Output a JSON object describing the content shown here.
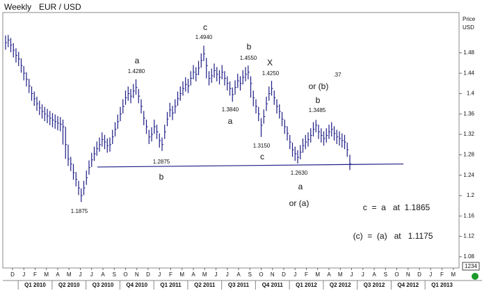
{
  "chart_data": {
    "type": "ohlc",
    "title": "Weekly",
    "subtitle": "EUR / USD",
    "y_axis_label": [
      "Price",
      "USD"
    ],
    "corner_box": "1234",
    "color": "#1c1c86",
    "ylim": [
      1.058,
      1.559
    ],
    "yticks": [
      1.08,
      1.12,
      1.16,
      1.2,
      1.24,
      1.28,
      1.32,
      1.36,
      1.4,
      1.44,
      1.48
    ],
    "months": [
      "D",
      "J",
      "F",
      "M",
      "A",
      "M",
      "J",
      "J",
      "A",
      "S",
      "O",
      "N",
      "D",
      "J",
      "F",
      "M",
      "A",
      "M",
      "J",
      "J",
      "A",
      "S",
      "O",
      "N",
      "D",
      "J",
      "F",
      "M",
      "A",
      "M",
      "J",
      "J",
      "A",
      "S",
      "O",
      "N",
      "D",
      "J",
      "F",
      "M"
    ],
    "quarters": [
      "Q1 2010",
      "Q2 2010",
      "Q3 2010",
      "Q4 2010",
      "Q1 2011",
      "Q2 2011",
      "Q3 2011",
      "Q4 2011",
      "Q1 2012",
      "Q2 2012",
      "Q3 2012",
      "Q4 2012",
      "Q1 2013"
    ],
    "series": [
      {
        "name": "EUR / USD",
        "high": [
          1.514,
          1.515,
          1.509,
          1.499,
          1.489,
          1.482,
          1.469,
          1.454,
          1.442,
          1.429,
          1.414,
          1.404,
          1.394,
          1.386,
          1.379,
          1.374,
          1.37,
          1.366,
          1.362,
          1.359,
          1.356,
          1.354,
          1.349,
          1.335,
          1.3,
          1.276,
          1.262,
          1.246,
          1.229,
          1.214,
          1.229,
          1.249,
          1.269,
          1.284,
          1.296,
          1.306,
          1.314,
          1.324,
          1.319,
          1.312,
          1.314,
          1.329,
          1.344,
          1.359,
          1.374,
          1.389,
          1.406,
          1.414,
          1.409,
          1.419,
          1.428,
          1.409,
          1.389,
          1.366,
          1.349,
          1.329,
          1.334,
          1.349,
          1.339,
          1.322,
          1.314,
          1.339,
          1.364,
          1.382,
          1.376,
          1.389,
          1.404,
          1.414,
          1.424,
          1.432,
          1.429,
          1.444,
          1.456,
          1.452,
          1.464,
          1.479,
          1.494,
          1.47,
          1.444,
          1.449,
          1.459,
          1.452,
          1.446,
          1.456,
          1.444,
          1.434,
          1.424,
          1.412,
          1.426,
          1.439,
          1.434,
          1.446,
          1.452,
          1.455,
          1.434,
          1.406,
          1.389,
          1.374,
          1.352,
          1.369,
          1.394,
          1.414,
          1.425,
          1.406,
          1.389,
          1.379,
          1.364,
          1.349,
          1.336,
          1.319,
          1.304,
          1.296,
          1.289,
          1.299,
          1.312,
          1.319,
          1.324,
          1.332,
          1.344,
          1.3485,
          1.339,
          1.332,
          1.326,
          1.332,
          1.339,
          1.344,
          1.336,
          1.329,
          1.326,
          1.322,
          1.319,
          1.304,
          1.28
        ],
        "low": [
          1.486,
          1.491,
          1.481,
          1.471,
          1.461,
          1.454,
          1.441,
          1.426,
          1.414,
          1.401,
          1.386,
          1.376,
          1.366,
          1.358,
          1.351,
          1.346,
          1.342,
          1.338,
          1.334,
          1.331,
          1.328,
          1.326,
          1.3,
          1.272,
          1.258,
          1.248,
          1.231,
          1.218,
          1.201,
          1.1875,
          1.201,
          1.221,
          1.241,
          1.256,
          1.268,
          1.278,
          1.286,
          1.296,
          1.291,
          1.284,
          1.286,
          1.301,
          1.316,
          1.331,
          1.346,
          1.361,
          1.378,
          1.386,
          1.381,
          1.391,
          1.398,
          1.381,
          1.361,
          1.338,
          1.321,
          1.301,
          1.306,
          1.321,
          1.311,
          1.294,
          1.2875,
          1.311,
          1.336,
          1.354,
          1.348,
          1.361,
          1.376,
          1.386,
          1.396,
          1.404,
          1.401,
          1.416,
          1.428,
          1.424,
          1.436,
          1.451,
          1.464,
          1.43,
          1.416,
          1.421,
          1.431,
          1.424,
          1.418,
          1.428,
          1.416,
          1.406,
          1.396,
          1.384,
          1.398,
          1.411,
          1.406,
          1.418,
          1.424,
          1.428,
          1.392,
          1.375,
          1.361,
          1.346,
          1.315,
          1.341,
          1.366,
          1.386,
          1.396,
          1.378,
          1.361,
          1.351,
          1.336,
          1.321,
          1.308,
          1.291,
          1.276,
          1.268,
          1.263,
          1.271,
          1.284,
          1.291,
          1.296,
          1.304,
          1.316,
          1.324,
          1.311,
          1.304,
          1.298,
          1.304,
          1.311,
          1.316,
          1.308,
          1.301,
          1.298,
          1.294,
          1.291,
          1.276,
          1.25
        ],
        "close": [
          1.5,
          1.505,
          1.495,
          1.485,
          1.475,
          1.468,
          1.455,
          1.44,
          1.428,
          1.415,
          1.4,
          1.39,
          1.38,
          1.372,
          1.365,
          1.36,
          1.356,
          1.352,
          1.348,
          1.345,
          1.342,
          1.34,
          1.335,
          1.3,
          1.272,
          1.262,
          1.245,
          1.232,
          1.215,
          1.2,
          1.215,
          1.235,
          1.255,
          1.27,
          1.282,
          1.292,
          1.3,
          1.31,
          1.305,
          1.298,
          1.3,
          1.315,
          1.33,
          1.345,
          1.36,
          1.375,
          1.392,
          1.4,
          1.395,
          1.405,
          1.412,
          1.395,
          1.375,
          1.352,
          1.335,
          1.315,
          1.32,
          1.335,
          1.325,
          1.308,
          1.3,
          1.325,
          1.35,
          1.368,
          1.362,
          1.375,
          1.39,
          1.4,
          1.41,
          1.418,
          1.415,
          1.43,
          1.442,
          1.438,
          1.45,
          1.465,
          1.478,
          1.455,
          1.43,
          1.435,
          1.445,
          1.438,
          1.432,
          1.442,
          1.43,
          1.42,
          1.41,
          1.398,
          1.412,
          1.425,
          1.42,
          1.432,
          1.438,
          1.442,
          1.42,
          1.392,
          1.375,
          1.36,
          1.338,
          1.355,
          1.38,
          1.4,
          1.41,
          1.392,
          1.375,
          1.365,
          1.35,
          1.335,
          1.322,
          1.305,
          1.29,
          1.282,
          1.275,
          1.285,
          1.298,
          1.305,
          1.31,
          1.318,
          1.33,
          1.338,
          1.325,
          1.318,
          1.312,
          1.318,
          1.325,
          1.33,
          1.322,
          1.315,
          1.312,
          1.308,
          1.305,
          1.29,
          1.262
        ]
      }
    ],
    "trendline": {
      "values": [
        1.256,
        1.262
      ]
    },
    "annotations": [
      "c",
      "1.4940",
      "a",
      "1.4280",
      "b",
      "1.4550",
      "X",
      "1.4250",
      ".37",
      "or (b)",
      "b",
      "1.3485",
      "1.3840",
      "a",
      "1.3150",
      "c",
      "1.2875",
      "b",
      "1.2630",
      "a",
      "or (a)",
      "1.1875",
      "c  =  a   at  1.1865",
      "(c)  =  (a)   at   1.1175"
    ]
  }
}
